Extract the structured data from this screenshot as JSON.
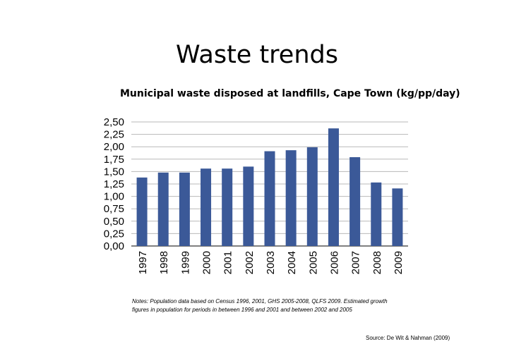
{
  "slide": {
    "title": "Waste trends",
    "notes_line1": "Notes: Population data based on Census 1996, 2001, GHS 2005-2008, QLFS 2009. Estimated growth",
    "notes_line2": "figures in population for periods in between 1996 and 2001 and between 2002 and 2005",
    "source": "Source: De Wit & Nahman (2009)"
  },
  "chart_data": {
    "type": "bar",
    "title": "Municipal waste disposed at landfills, Cape Town (kg/pp/day)",
    "xlabel": "",
    "ylabel": "",
    "categories": [
      "1997",
      "1998",
      "1999",
      "2000",
      "2001",
      "2002",
      "2003",
      "2004",
      "2005",
      "2006",
      "2007",
      "2008",
      "2009"
    ],
    "values": [
      1.38,
      1.48,
      1.48,
      1.56,
      1.56,
      1.6,
      1.91,
      1.93,
      1.99,
      2.37,
      1.79,
      1.28,
      1.16
    ],
    "ylim": [
      0,
      2.5
    ],
    "yticks": [
      "0,00",
      "0,25",
      "0,50",
      "0,75",
      "1,00",
      "1,25",
      "1,50",
      "1,75",
      "2,00",
      "2,25",
      "2,50"
    ],
    "grid": true,
    "bar_color": "#3b5998",
    "grid_color": "#b8b8b8"
  }
}
